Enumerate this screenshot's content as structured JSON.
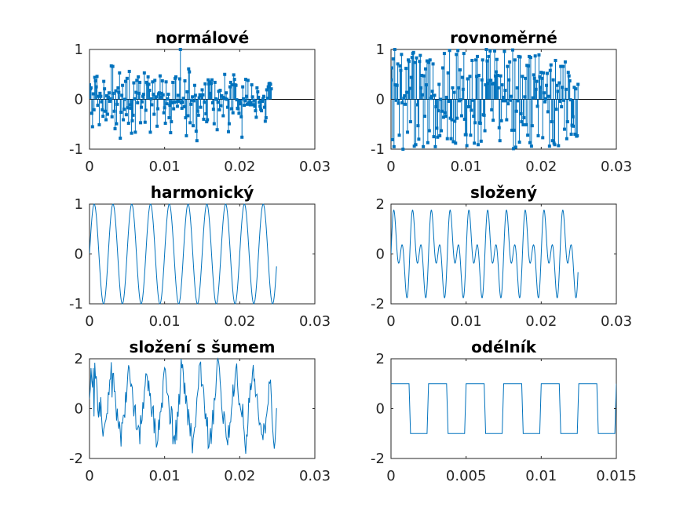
{
  "figure": {
    "background": "#ffffff",
    "series_color": "#0072bd",
    "axis_color": "#262626"
  },
  "chart_data": [
    {
      "id": "normalove",
      "type": "stem",
      "title": "normálové",
      "xlim": [
        0,
        0.03
      ],
      "ylim": [
        -1,
        1
      ],
      "xticks": [
        0,
        0.01,
        0.02,
        0.03
      ],
      "xtick_labels": [
        "0",
        "0.01",
        "0.02",
        "0.03"
      ],
      "yticks": [
        -1,
        0,
        1
      ],
      "ytick_labels": [
        "-1",
        "0",
        "1"
      ],
      "baseline": 0,
      "sample_period": 0.0001,
      "values": [
        0.29,
        0.21,
        0.23,
        -0.28,
        -0.55,
        0.11,
        -0.21,
        0.44,
        0.37,
        0.25,
        0.46,
        -0.12,
        0.06,
        -0.51,
        0.12,
        0.06,
        -0.05,
        -0.21,
        -0.34,
        0.36,
        0.21,
        -0.24,
        -0.41,
        0.07,
        -0.3,
        0.04,
        0.13,
        -0.04,
        0.01,
        0.67,
        -0.35,
        0.66,
        0.12,
        -0.24,
        -0.59,
        0.17,
        -0.49,
        -0.1,
        0.23,
        0.14,
        0.53,
        -0.78,
        -0.26,
        0.08,
        0.28,
        -0.41,
        -0.2,
        0.0,
        0.36,
        -0.31,
        0.42,
        -0.17,
        -0.48,
        0.56,
        -0.11,
        -0.18,
        -0.68,
        -0.43,
        -0.32,
        0.33,
        0.01,
        -0.66,
        0.14,
        0.38,
        -0.07,
        0.45,
        0.12,
        0.34,
        -0.47,
        -0.16,
        -0.05,
        0.06,
        0.1,
        0.53,
        -0.46,
        -0.22,
        0.34,
        0.31,
        0.45,
        0.3,
        0.18,
        -0.66,
        0.01,
        -0.11,
        0.35,
        0.1,
        -0.3,
        0.38,
        0.04,
        0.05,
        -0.54,
        -0.19,
        0.11,
        0.13,
        0.47,
        0.05,
        0.12,
        0.37,
        0.09,
        -0.27,
        -0.17,
        -0.48,
        0.35,
        -0.09,
        0.01,
        0.1,
        -0.37,
        -0.12,
        -0.67,
        -0.45,
        -0.07,
        0.34,
        -0.19,
        -0.06,
        0.42,
        0.45,
        -0.05,
        -0.14,
        0.08,
        -0.04,
        0.41,
        1.0,
        -0.07,
        -0.18,
        -0.06,
        0.02,
        -0.15,
        0.37,
        -0.37,
        -0.73,
        0.15,
        -0.33,
        0.61,
        0.55,
        -0.47,
        -0.1,
        -0.02,
        0.05,
        -0.53,
        -0.03,
        0.28,
        0.08,
        -0.64,
        -0.83,
        -0.24,
        -0.32,
        0.03,
        0.09,
        -0.16,
        0.07,
        0.19,
        0.09,
        -0.4,
        -0.06,
        0.31,
        -0.29,
        -0.45,
        -0.41,
        0.39,
        0.31,
        0.35,
        0.12,
        0.32,
        0.39,
        -0.07,
        -0.2,
        -0.49,
        0.34,
        0.01,
        0.0,
        -0.61,
        -0.06,
        0.16,
        -0.21,
        0.18,
        -0.13,
        0.07,
        0.04,
        -0.33,
        0.03,
        0.5,
        0.01,
        0.13,
        0.0,
        -0.16,
        -0.65,
        -0.49,
        0.25,
        0.34,
        -0.19,
        0.29,
        -0.27,
        0.49,
        0.4,
        0.29,
        0.28,
        -0.01,
        -0.18,
        -0.19,
        -0.28,
        -0.03,
        -0.09,
        -0.35,
        -0.76,
        0.25,
        0.01,
        -0.12,
        -0.03,
        0.4,
        0.06,
        -0.1,
        0.38,
        -0.08,
        -0.07,
        -0.11,
        -0.07,
        0.29,
        0.05,
        -0.11,
        -0.02,
        -0.14,
        -0.23,
        -0.36,
        0.23,
        0.15,
        0.04,
        -0.06,
        -0.14,
        -0.2,
        -0.23,
        -0.04,
        0.01,
        0.06,
        -0.16,
        -0.44,
        -0.37,
        0.19,
        0.02,
        0.25,
        0.31,
        0.32,
        0.3,
        0.21
      ]
    },
    {
      "id": "rovnomerne",
      "type": "stem",
      "title": "rovnoměrné",
      "xlim": [
        0,
        0.03
      ],
      "ylim": [
        -1,
        1
      ],
      "xticks": [
        0,
        0.01,
        0.02,
        0.03
      ],
      "xtick_labels": [
        "0",
        "0.01",
        "0.02",
        "0.03"
      ],
      "yticks": [
        -1,
        0,
        1
      ],
      "ytick_labels": [
        "-1",
        "0",
        "1"
      ],
      "baseline": 0,
      "sample_period": 0.0001,
      "values": [
        0.39,
        0.63,
        -0.81,
        0.81,
        -0.95,
        1.0,
        0.29,
        -0.02,
        0.28,
        0.71,
        -0.08,
        -0.72,
        0.67,
        0.58,
        0.9,
        -0.07,
        -1.0,
        0.02,
        0.07,
        -0.1,
        0.62,
        0.14,
        -0.66,
        0.79,
        0.76,
        0.22,
        -0.45,
        0.44,
        0.84,
        0.92,
        0.94,
        -0.94,
        0.74,
        -0.91,
        0.83,
        -0.11,
        -0.53,
        -0.8,
        0.76,
        0.88,
        0.23,
        0.48,
        0.09,
        -0.95,
        0.47,
        -0.34,
        0.61,
        0.29,
        0.77,
        -0.87,
        0.74,
        -0.63,
        0.79,
        0.02,
        0.06,
        0.16,
        0.71,
        -0.75,
        0.08,
        -0.95,
        -0.15,
        -0.58,
        -0.76,
        -0.23,
        0.3,
        -0.73,
        0.0,
        -0.63,
        -0.24,
        0.63,
        -0.36,
        0.92,
        -0.27,
        -0.34,
        0.04,
        -0.79,
        0.53,
        -0.04,
        0.98,
        -0.38,
        -0.79,
        -0.41,
        0.23,
        -0.85,
        0.14,
        -0.44,
        -0.88,
        0.9,
        -0.38,
        0.98,
        0.23,
        -0.03,
        0.59,
        -0.01,
        -0.33,
        0.44,
        0.2,
        0.92,
        -0.4,
        -0.71,
        -0.71,
        -0.93,
        0.41,
        -0.15,
        -0.15,
        0.46,
        -0.72,
        -0.22,
        0.78,
        -0.02,
        -0.34,
        -0.88,
        -0.47,
        0.79,
        0.46,
        0.86,
        -0.91,
        0.48,
        -0.47,
        -0.48,
        -0.84,
        0.39,
        0.79,
        -0.31,
        -0.32,
        -0.63,
        0.29,
        1.0,
        0.77,
        0.32,
        0.86,
        0.38,
        0.97,
        0.38,
        -0.21,
        0.31,
        -0.42,
        0.32,
        0.97,
        0.47,
        0.55,
        0.8,
        0.48,
        0.23,
        -0.57,
        -0.83,
        0.47,
        -0.43,
        0.29,
        -0.03,
        0.04,
        0.96,
        0.18,
        -0.03,
        -0.41,
        0.66,
        -0.09,
        0.39,
        0.75,
        -0.02,
        0.06,
        -0.62,
        0.99,
        -0.99,
        -0.62,
        0.79,
        -0.96,
        -0.24,
        0.23,
        -0.03,
        0.86,
        -0.86,
        0.85,
        -0.29,
        -0.45,
        0.46,
        -0.51,
        -0.37,
        0.05,
        0.42,
        -0.51,
        0.68,
        -0.72,
        0.67,
        0.86,
        -0.87,
        0.84,
        -0.94,
        -0.53,
        0.03,
        0.49,
        0.42,
        0.87,
        0.2,
        0.36,
        -0.14,
        -0.73,
        0.89,
        0.45,
        0.24,
        0.54,
        0.42,
        -0.77,
        0.53,
        0.13,
        -0.05,
        0.01,
        0.28,
        0.52,
        -0.25,
        0.06,
        -0.94,
        0.58,
        0.69,
        -0.45,
        -0.83,
        0.39,
        -0.88,
        -0.91,
        0.78,
        -0.2,
        0.28,
        0.16,
        -0.93,
        0.33,
        -0.04,
        0.66,
        -0.15,
        0.24,
        0.66,
        -0.02,
        -0.6,
        0.75,
        0.2,
        -0.79,
        -0.45,
        0.54,
        0.47,
        0.37,
        -0.01,
        -0.7,
        -0.52,
        -0.35,
        -0.54,
        0.24,
        -0.7,
        0.21,
        -0.74,
        -0.73,
        0.3
      ]
    },
    {
      "id": "harmonicky",
      "type": "line",
      "title": "harmonický",
      "xlim": [
        0,
        0.03
      ],
      "ylim": [
        -1,
        1
      ],
      "xticks": [
        0,
        0.01,
        0.02,
        0.03
      ],
      "xtick_labels": [
        "0",
        "0.01",
        "0.02",
        "0.03"
      ],
      "yticks": [
        -1,
        0,
        1
      ],
      "ytick_labels": [
        "-1",
        "0",
        "1"
      ],
      "signal": {
        "kind": "sine",
        "amplitude": 1,
        "frequency_hz": 400,
        "phase": 0,
        "t_start": 0,
        "t_end": 0.0249
      }
    },
    {
      "id": "slozeny",
      "type": "line",
      "title": "složený",
      "xlim": [
        0,
        0.03
      ],
      "ylim": [
        -2,
        2
      ],
      "xticks": [
        0,
        0.01,
        0.02,
        0.03
      ],
      "xtick_labels": [
        "0",
        "0.01",
        "0.02",
        "0.03"
      ],
      "yticks": [
        -2,
        0,
        2
      ],
      "ytick_labels": [
        "-2",
        "0",
        "2"
      ],
      "signal": {
        "kind": "sum_of_sines",
        "components": [
          {
            "amplitude": 1,
            "frequency_hz": 400
          },
          {
            "amplitude": 1,
            "frequency_hz": 800
          }
        ],
        "t_start": 0,
        "t_end": 0.0249
      }
    },
    {
      "id": "slozeni-s-sumem",
      "type": "line",
      "title": "složení s šumem",
      "xlim": [
        0,
        0.03
      ],
      "ylim": [
        -2,
        2
      ],
      "xticks": [
        0,
        0.01,
        0.02,
        0.03
      ],
      "xtick_labels": [
        "0",
        "0.01",
        "0.02",
        "0.03"
      ],
      "yticks": [
        -2,
        0,
        2
      ],
      "ytick_labels": [
        "-2",
        "0",
        "2"
      ],
      "sample_period": 0.0001,
      "values": [
        0.38,
        0.78,
        1.62,
        1.12,
        0.85,
        1.62,
        -0.31,
        1.84,
        1.2,
        1.3,
        0.86,
        -0.06,
        -0.35,
        0.26,
        -0.32,
        0.46,
        -0.31,
        -0.81,
        -1.12,
        -0.81,
        -0.69,
        -0.53,
        -0.44,
        -0.2,
        -0.19,
        0.66,
        0.55,
        1.15,
        1.2,
        1.86,
        0.45,
        1.41,
        1.42,
        0.69,
        0.7,
        0.15,
        -0.48,
        0.0,
        -0.55,
        -0.81,
        -0.51,
        -0.94,
        -1.52,
        -0.57,
        -0.58,
        -0.27,
        -0.26,
        -0.36,
        0.67,
        0.25,
        0.84,
        1.39,
        1.74,
        1.61,
        1.16,
        0.88,
        0.97,
        0.84,
        0.19,
        -0.31,
        0.1,
        0.14,
        -0.8,
        -0.85,
        -0.81,
        -0.68,
        -0.76,
        -1.43,
        -0.27,
        -0.62,
        -0.46,
        0.26,
        -0.01,
        0.69,
        0.91,
        1.4,
        1.39,
        1.25,
        0.7,
        1.13,
        0.51,
        0.62,
        -0.07,
        -0.33,
        0.06,
        0.1,
        -0.99,
        -0.39,
        -0.87,
        -1.56,
        -1.44,
        -1.27,
        -0.44,
        -0.86,
        -0.14,
        -0.13,
        0.24,
        0.03,
        1.11,
        1.43,
        1.64,
        1.57,
        1.15,
        0.64,
        0.58,
        0.5,
        0.0,
        -0.63,
        -0.56,
        0.1,
        -0.05,
        -1.43,
        -1.15,
        -1.09,
        -1.43,
        -0.45,
        -1.28,
        -0.13,
        -0.32,
        0.59,
        0.16,
        1.2,
        2.0,
        1.62,
        1.78,
        1.37,
        0.59,
        1.04,
        0.19,
        0.53,
        0.05,
        -0.67,
        -0.02,
        -0.48,
        -1.11,
        -0.58,
        -1.12,
        -1.79,
        -1.2,
        -0.99,
        -0.76,
        -0.73,
        -0.22,
        0.42,
        0.64,
        0.87,
        1.72,
        1.8,
        1.88,
        0.91,
        0.96,
        0.96,
        0.77,
        0.13,
        -0.42,
        -0.19,
        -0.72,
        -0.34,
        -1.59,
        -1.54,
        -1.17,
        -0.78,
        -1.42,
        -0.81,
        -0.05,
        -0.63,
        0.42,
        0.36,
        0.62,
        1.3,
        1.91,
        2.0,
        1.86,
        1.6,
        1.06,
        0.66,
        0.04,
        -0.27,
        -0.61,
        -0.11,
        -0.3,
        -0.7,
        -1.15,
        -1.27,
        -1.47,
        -0.66,
        -1.17,
        -0.56,
        -0.54,
        -0.02,
        0.22,
        0.97,
        0.48,
        0.76,
        1.35,
        1.63,
        1.81,
        0.99,
        0.53,
        0.14,
        0.22,
        0.01,
        -0.15,
        -0.34,
        0.19,
        -0.64,
        -0.95,
        -1.44,
        -1.81,
        -1.04,
        -1.12,
        -0.54,
        0.43,
        0.24,
        1.02,
        0.74,
        0.97,
        1.45,
        1.75,
        1.12,
        1.17,
        0.49,
        0.55,
        0.58,
        0.17,
        -0.31,
        -0.64,
        -0.58,
        -0.64,
        -1.02,
        -1.06,
        -1.26,
        -0.59,
        -0.71,
        -1.0,
        -0.38,
        -0.22,
        0.07,
        0.23,
        1.06,
        1.02,
        1.16,
        0.51,
        -0.39,
        -0.87,
        -1.29,
        -1.61,
        -1.32,
        -0.73,
        0.02
      ]
    },
    {
      "id": "odelnik",
      "type": "line",
      "title": "odélník",
      "xlim": [
        0,
        0.015
      ],
      "ylim": [
        -2,
        2
      ],
      "xticks": [
        0,
        0.005,
        0.01,
        0.015
      ],
      "xtick_labels": [
        "0",
        "0.005",
        "0.01",
        "0.015"
      ],
      "yticks": [
        -2,
        0,
        2
      ],
      "ytick_labels": [
        "-2",
        "0",
        "2"
      ],
      "signal": {
        "kind": "square",
        "amplitude": 1,
        "frequency_hz": 400,
        "t_start": 0,
        "t_end": 0.015,
        "sample_period": 0.0001
      }
    }
  ]
}
